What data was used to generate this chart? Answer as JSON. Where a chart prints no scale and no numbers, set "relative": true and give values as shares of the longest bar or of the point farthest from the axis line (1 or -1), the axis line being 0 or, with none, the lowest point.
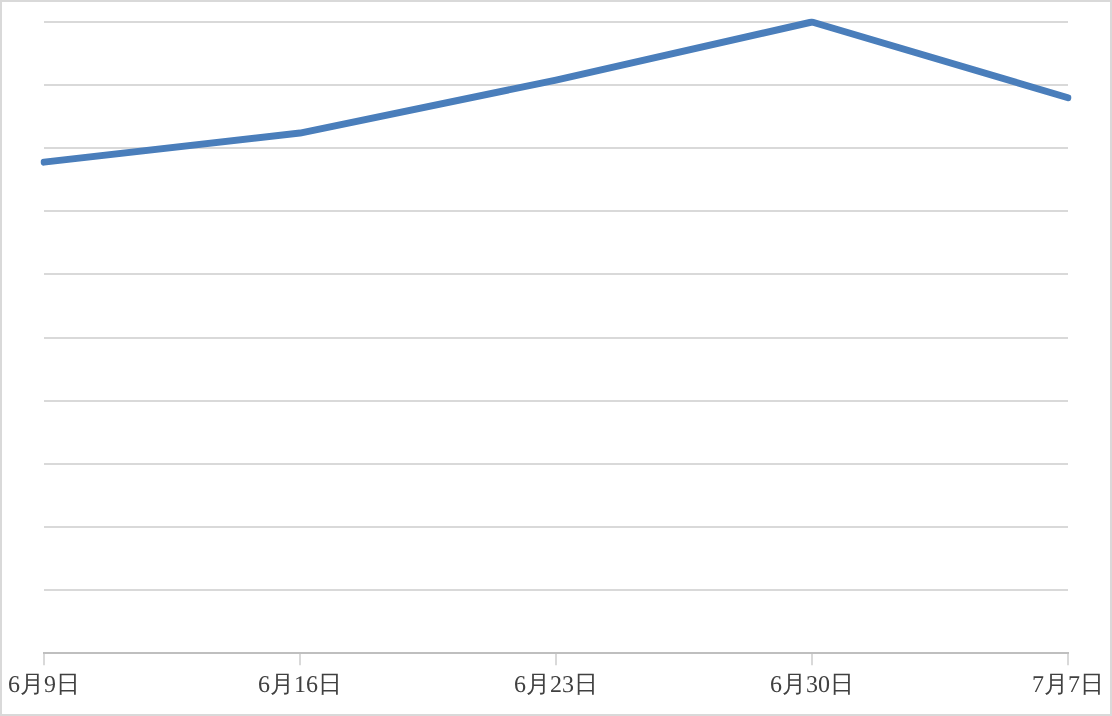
{
  "chart_data": {
    "type": "line",
    "relative": true,
    "categories": [
      "6月9日",
      "6月16日",
      "6月23日",
      "6月30日",
      "7月7日"
    ],
    "series": [
      {
        "color": "#4a7ebb",
        "values": [
          0.778,
          0.824,
          0.908,
          1,
          0.88
        ]
      }
    ],
    "grid": "y",
    "legend": false,
    "marker": "none",
    "line_style": "solid"
  }
}
